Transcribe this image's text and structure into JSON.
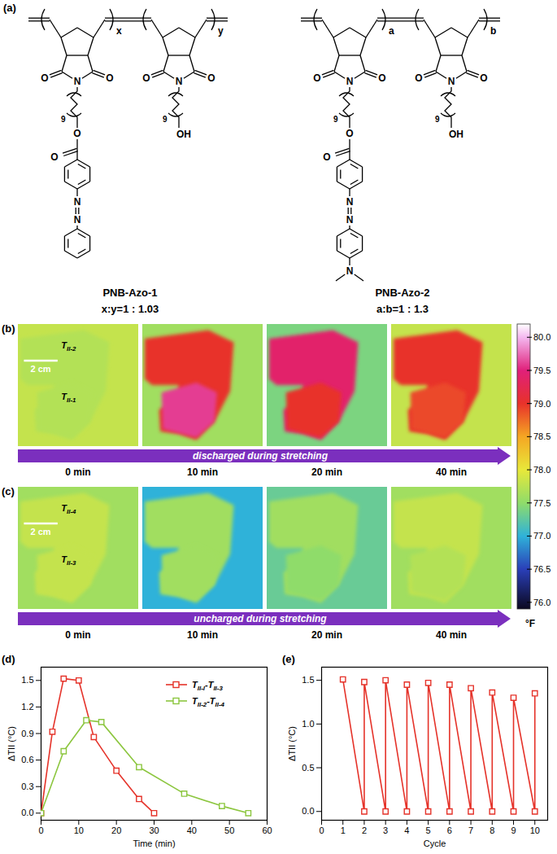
{
  "panels": [
    "(a)",
    "(b)",
    "(c)",
    "(d)",
    "(e)"
  ],
  "structures": [
    {
      "name": "PNB-Azo-1",
      "ratio": "x:y=1 : 1.03",
      "repeat_labels": [
        "x",
        "y"
      ],
      "atoms": {
        "oxygen": "O",
        "nitrogen": "N",
        "hydroxyl": "OH",
        "spacer": "9"
      }
    },
    {
      "name": "PNB-Azo-2",
      "ratio": "a:b=1 : 1.3",
      "repeat_labels": [
        "a",
        "b"
      ],
      "atoms": {
        "oxygen": "O",
        "nitrogen": "N",
        "hydroxyl": "OH",
        "spacer": "9"
      },
      "amine": "N"
    }
  ],
  "thermal": {
    "unit": "°F",
    "clim": [
      75.9,
      80.2
    ],
    "ticks": [
      {
        "value": 76,
        "label": "76.0"
      },
      {
        "value": 76.5,
        "label": "76.5"
      },
      {
        "value": 77,
        "label": "77.0"
      },
      {
        "value": 77.5,
        "label": "77.5"
      },
      {
        "value": 78,
        "label": "78.0"
      },
      {
        "value": 78.5,
        "label": "78.5"
      },
      {
        "value": 79,
        "label": "79.0"
      },
      {
        "value": 79.5,
        "label": "79.5"
      },
      {
        "value": 80,
        "label": "80.0"
      }
    ],
    "colormap": [
      {
        "value": 75.9,
        "color": "#0b0820"
      },
      {
        "value": 76.5,
        "color": "#2a3fb8"
      },
      {
        "value": 77.0,
        "color": "#2fb2d9"
      },
      {
        "value": 77.5,
        "color": "#8fdc6a"
      },
      {
        "value": 78.0,
        "color": "#e8e83a"
      },
      {
        "value": 78.5,
        "color": "#f5a623"
      },
      {
        "value": 79.0,
        "color": "#e8322a"
      },
      {
        "value": 79.5,
        "color": "#e0207a"
      },
      {
        "value": 80.0,
        "color": "#f4b8f0"
      },
      {
        "value": 80.2,
        "color": "#ffffff"
      }
    ],
    "scale_bar": "2 cm",
    "times": [
      "0 min",
      "10 min",
      "20 min",
      "40 min"
    ],
    "rows": [
      {
        "caption": "discharged during stretching",
        "labels": [
          "TII-2",
          "TII-1"
        ],
        "frames": [
          {
            "background": 77.8,
            "upper": 77.7,
            "lower": 77.7
          },
          {
            "background": 77.6,
            "upper": 79.0,
            "lower": 79.6
          },
          {
            "background": 77.4,
            "upper": 79.4,
            "lower": 79.0
          },
          {
            "background": 77.8,
            "upper": 79.0,
            "lower": 78.9
          }
        ]
      },
      {
        "caption": "uncharged during stretching",
        "labels": [
          "TII-4",
          "TII-3"
        ],
        "frames": [
          {
            "background": 77.6,
            "upper": 77.8,
            "lower": 77.8
          },
          {
            "background": 77.0,
            "upper": 77.6,
            "lower": 77.6
          },
          {
            "background": 77.3,
            "upper": 77.6,
            "lower": 77.5
          },
          {
            "background": 77.6,
            "upper": 77.8,
            "lower": 77.7
          }
        ]
      }
    ]
  },
  "chart_data": [
    {
      "type": "line",
      "xlabel": "Time (min)",
      "ylabel": "ΔTII (°C)",
      "xlim": [
        0,
        60
      ],
      "xticks": [
        0,
        10,
        20,
        30,
        40,
        50,
        60
      ],
      "ylim": [
        -0.08,
        1.65
      ],
      "yticks": [
        {
          "value": 0,
          "label": "0.0"
        },
        {
          "value": 0.3,
          "label": "0.3"
        },
        {
          "value": 0.6,
          "label": "0.6"
        },
        {
          "value": 0.9,
          "label": "0.9"
        },
        {
          "value": 1.2,
          "label": "1.2"
        },
        {
          "value": 1.5,
          "label": "1.5"
        }
      ],
      "grid": false,
      "legend": "upper right",
      "series": [
        {
          "name": "TII-I-TII-3",
          "color": "#e5332a",
          "marker": "square",
          "x": [
            0,
            3,
            6,
            10,
            14,
            20,
            26,
            30
          ],
          "values": [
            0,
            0.92,
            1.52,
            1.5,
            0.86,
            0.48,
            0.16,
            0
          ]
        },
        {
          "name": "TII-2-TII-4",
          "color": "#8cc63f",
          "marker": "square",
          "x": [
            0,
            6,
            12,
            16,
            26,
            38,
            48,
            55
          ],
          "values": [
            0,
            0.7,
            1.05,
            1.03,
            0.52,
            0.22,
            0.08,
            0
          ]
        }
      ]
    },
    {
      "type": "line",
      "xlabel": "Cycle",
      "ylabel": "ΔTII (°C)",
      "xlim": [
        0,
        10.6
      ],
      "xticks": [
        0,
        1,
        2,
        3,
        4,
        5,
        6,
        7,
        8,
        9,
        10
      ],
      "ylim": [
        -0.1,
        1.65
      ],
      "yticks": [
        {
          "value": 0,
          "label": "0.0"
        },
        {
          "value": 0.5,
          "label": "0.5"
        },
        {
          "value": 1,
          "label": "1.0"
        },
        {
          "value": 1.5,
          "label": "1.5"
        }
      ],
      "grid": false,
      "series": [
        {
          "color": "#e5332a",
          "marker": "square",
          "x": [
            1,
            2,
            2,
            3,
            3,
            4,
            4,
            5,
            5,
            6,
            6,
            7,
            7,
            8,
            8,
            9,
            9,
            10,
            10
          ],
          "values": [
            1.51,
            0,
            1.48,
            0,
            1.5,
            0,
            1.45,
            0,
            1.47,
            0,
            1.45,
            0,
            1.41,
            0,
            1.36,
            0,
            1.3,
            0,
            1.35
          ]
        }
      ]
    }
  ]
}
